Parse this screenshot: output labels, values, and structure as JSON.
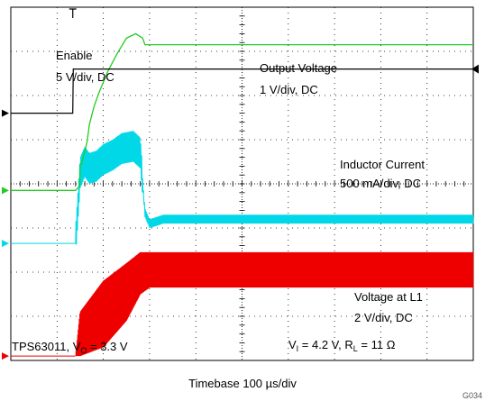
{
  "chart_data": {
    "type": "line",
    "title": "",
    "device": "TPS63011",
    "conditions": {
      "vi_label": "V",
      "vi_sub": "I",
      "vi_value": " = 4.2 V, ",
      "rl_label": "R",
      "rl_sub": "L",
      "rl_value": " = 11 Ω"
    },
    "device_label": {
      "text": "TPS63011, V",
      "sub": "O",
      "value": " = 3.3 V"
    },
    "xlabel": "Timebase 100 µs/div",
    "x_unit": "µs",
    "x_div": 100,
    "divisions": {
      "x": 10,
      "y": 8
    },
    "grid": true,
    "figure_id": "G034",
    "series": [
      {
        "name": "Enable",
        "scale": "5 V/div, DC",
        "color": "#000000",
        "ground_div": 5.6,
        "x_us": [
          0,
          134,
          135,
          1000
        ],
        "y_div": [
          0,
          0,
          1.0,
          1.0
        ]
      },
      {
        "name": "Output Voltage",
        "scale": "1 V/div, DC",
        "color": "#22cc22",
        "ground_div": 3.85,
        "x_us": [
          0,
          140,
          149,
          150,
          153,
          160,
          165,
          170,
          180,
          190,
          210,
          230,
          250,
          270,
          285,
          290,
          300,
          1000
        ],
        "y_div": [
          0,
          0,
          0.1,
          0.6,
          0.6,
          0.9,
          1.1,
          1.5,
          1.9,
          2.2,
          2.7,
          3.1,
          3.45,
          3.55,
          3.45,
          3.3,
          3.3,
          3.3
        ]
      },
      {
        "name": "Inductor Current",
        "scale": "500 mA/div, DC",
        "color": "#00d8e8",
        "ground_div": 2.65,
        "x_us": [
          0,
          140,
          145,
          150,
          160,
          170,
          185,
          200,
          220,
          240,
          265,
          280,
          290,
          300,
          310,
          330,
          1000
        ],
        "y_div": [
          0,
          0,
          0.8,
          1.6,
          1.85,
          1.7,
          1.75,
          1.9,
          2.0,
          2.15,
          2.2,
          2.05,
          0.7,
          0.45,
          0.48,
          0.55,
          0.55
        ],
        "ripple_div": 0.2
      },
      {
        "name": "Voltage at L1",
        "scale": "2 V/div, DC",
        "color": "#ee0000",
        "ground_div": 0.1,
        "envelope_x_us": [
          140,
          150,
          200,
          250,
          280,
          300,
          1000
        ],
        "envelope_top_div": [
          0,
          1.0,
          1.7,
          2.1,
          2.35,
          2.35,
          2.35
        ],
        "envelope_bottom_div": [
          0,
          0,
          0.2,
          0.8,
          1.4,
          1.55,
          1.55
        ]
      }
    ]
  }
}
